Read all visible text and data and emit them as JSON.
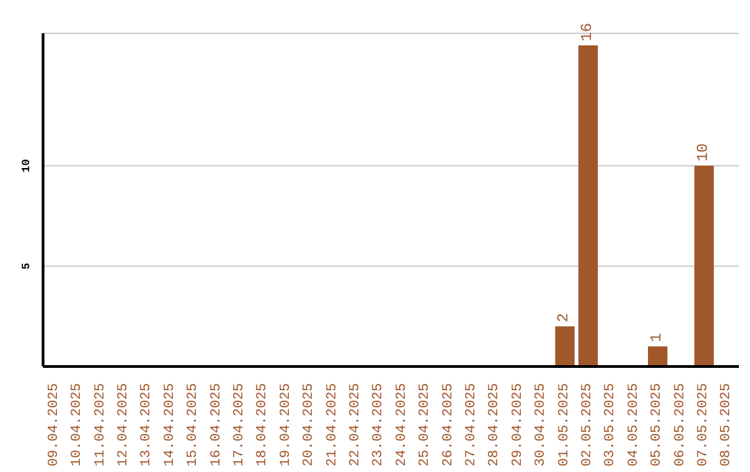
{
  "chart_data": {
    "type": "bar",
    "categories": [
      "09.04.2025",
      "10.04.2025",
      "11.04.2025",
      "12.04.2025",
      "13.04.2025",
      "14.04.2025",
      "15.04.2025",
      "16.04.2025",
      "17.04.2025",
      "18.04.2025",
      "19.04.2025",
      "20.04.2025",
      "21.04.2025",
      "22.04.2025",
      "23.04.2025",
      "24.04.2025",
      "25.04.2025",
      "26.04.2025",
      "27.04.2025",
      "28.04.2025",
      "29.04.2025",
      "30.04.2025",
      "01.05.2025",
      "02.05.2025",
      "03.05.2025",
      "04.05.2025",
      "05.05.2025",
      "06.05.2025",
      "07.05.2025",
      "08.05.2025"
    ],
    "values": [
      0,
      0,
      0,
      0,
      0,
      0,
      0,
      0,
      0,
      0,
      0,
      0,
      0,
      0,
      0,
      0,
      0,
      0,
      0,
      0,
      0,
      0,
      2,
      16,
      0,
      0,
      1,
      0,
      10,
      0
    ],
    "value_labels": [
      null,
      null,
      null,
      null,
      null,
      null,
      null,
      null,
      null,
      null,
      null,
      null,
      null,
      null,
      null,
      null,
      null,
      null,
      null,
      null,
      null,
      null,
      "2",
      "16",
      null,
      null,
      "1",
      null,
      "10",
      null
    ],
    "color": "#a0572a",
    "ylim": [
      0,
      16.6
    ],
    "yticks": [
      5,
      10
    ],
    "grid": "y"
  }
}
